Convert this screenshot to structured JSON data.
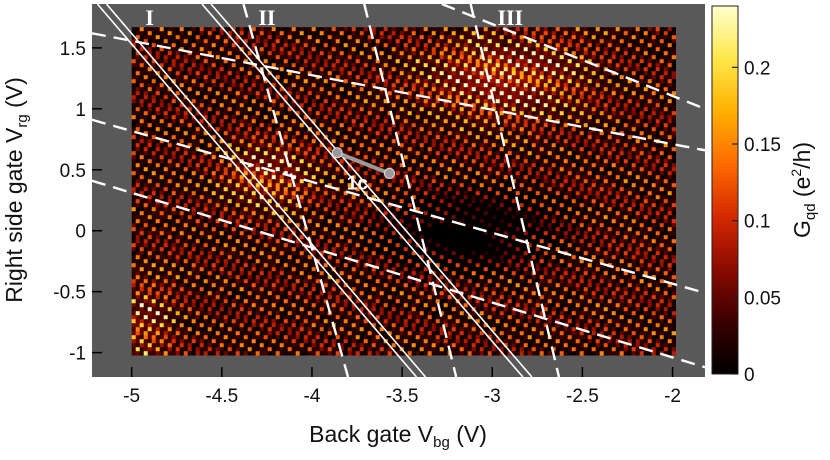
{
  "chart_data": {
    "type": "heatmap",
    "title": "",
    "xlabel": "Back gate V",
    "xlabel_sub": "bg",
    "xlabel_unit": " (V)",
    "ylabel": "Right side gate V",
    "ylabel_sub": "rg",
    "ylabel_unit": " (V)",
    "xlim": [
      -5.22,
      -1.82
    ],
    "ylim": [
      -1.2,
      1.86
    ],
    "data_extent": {
      "x": [
        -5.0,
        -2.0
      ],
      "y": [
        -1.0,
        1.67
      ]
    },
    "x_ticks": [
      -5,
      -4.5,
      -4,
      -3.5,
      -3,
      -2.5,
      -2
    ],
    "x_tick_labels": [
      "-5",
      "-4.5",
      "-4",
      "-3.5",
      "-3",
      "-2.5",
      "-2"
    ],
    "y_ticks": [
      -1,
      -0.5,
      0,
      0.5,
      1,
      1.5
    ],
    "y_tick_labels": [
      "-1",
      "-0.5",
      "0",
      "0.5",
      "1",
      "1.5"
    ],
    "colorbar": {
      "label": "G",
      "label_sub": "qd",
      "label_unit_pre": " (e",
      "label_unit_sup": "2",
      "label_unit_post": "/h)",
      "range": [
        0,
        0.24
      ],
      "ticks": [
        0,
        0.05,
        0.1,
        0.15,
        0.2
      ],
      "tick_labels": [
        "0",
        "0.05",
        "0.1",
        "0.15",
        "0.2"
      ],
      "colormap": [
        "#000000",
        "#3a0000",
        "#8b0a00",
        "#d42a00",
        "#ff6a00",
        "#ffb000",
        "#ffe84a",
        "#ffffcc"
      ]
    },
    "regions": [
      "I",
      "II",
      "III"
    ],
    "region_positions": [
      -4.9,
      -4.25,
      -2.9
    ],
    "solid_lines": [
      {
        "p1": [
          -5.14,
          1.86
        ],
        "p2": [
          -3.37,
          -1.2
        ]
      },
      {
        "p1": [
          -5.19,
          1.86
        ],
        "p2": [
          -3.42,
          -1.2
        ]
      },
      {
        "p1": [
          -4.56,
          1.86
        ],
        "p2": [
          -2.78,
          -1.2
        ]
      },
      {
        "p1": [
          -4.61,
          1.86
        ],
        "p2": [
          -2.83,
          -1.2
        ]
      }
    ],
    "dashed_lines_steep": [
      {
        "p1": [
          -4.38,
          1.86
        ],
        "p2": [
          -3.8,
          -1.2
        ]
      },
      {
        "p1": [
          -3.71,
          1.86
        ],
        "p2": [
          -3.2,
          -1.2
        ]
      },
      {
        "p1": [
          -3.12,
          1.86
        ],
        "p2": [
          -2.63,
          -1.2
        ]
      }
    ],
    "dashed_lines_shallow": [
      {
        "p1": [
          -5.22,
          1.62
        ],
        "p2": [
          -1.82,
          0.66
        ]
      },
      {
        "p1": [
          -5.22,
          0.91
        ],
        "p2": [
          -1.82,
          -0.51
        ]
      },
      {
        "p1": [
          -5.22,
          0.41
        ],
        "p2": [
          -1.82,
          -1.12
        ]
      },
      {
        "p1": [
          -3.28,
          1.86
        ],
        "p2": [
          -1.82,
          1.0
        ]
      }
    ],
    "annotation": {
      "label": "1c",
      "p1": [
        -3.86,
        0.64
      ],
      "p2": [
        -3.57,
        0.47
      ]
    }
  }
}
